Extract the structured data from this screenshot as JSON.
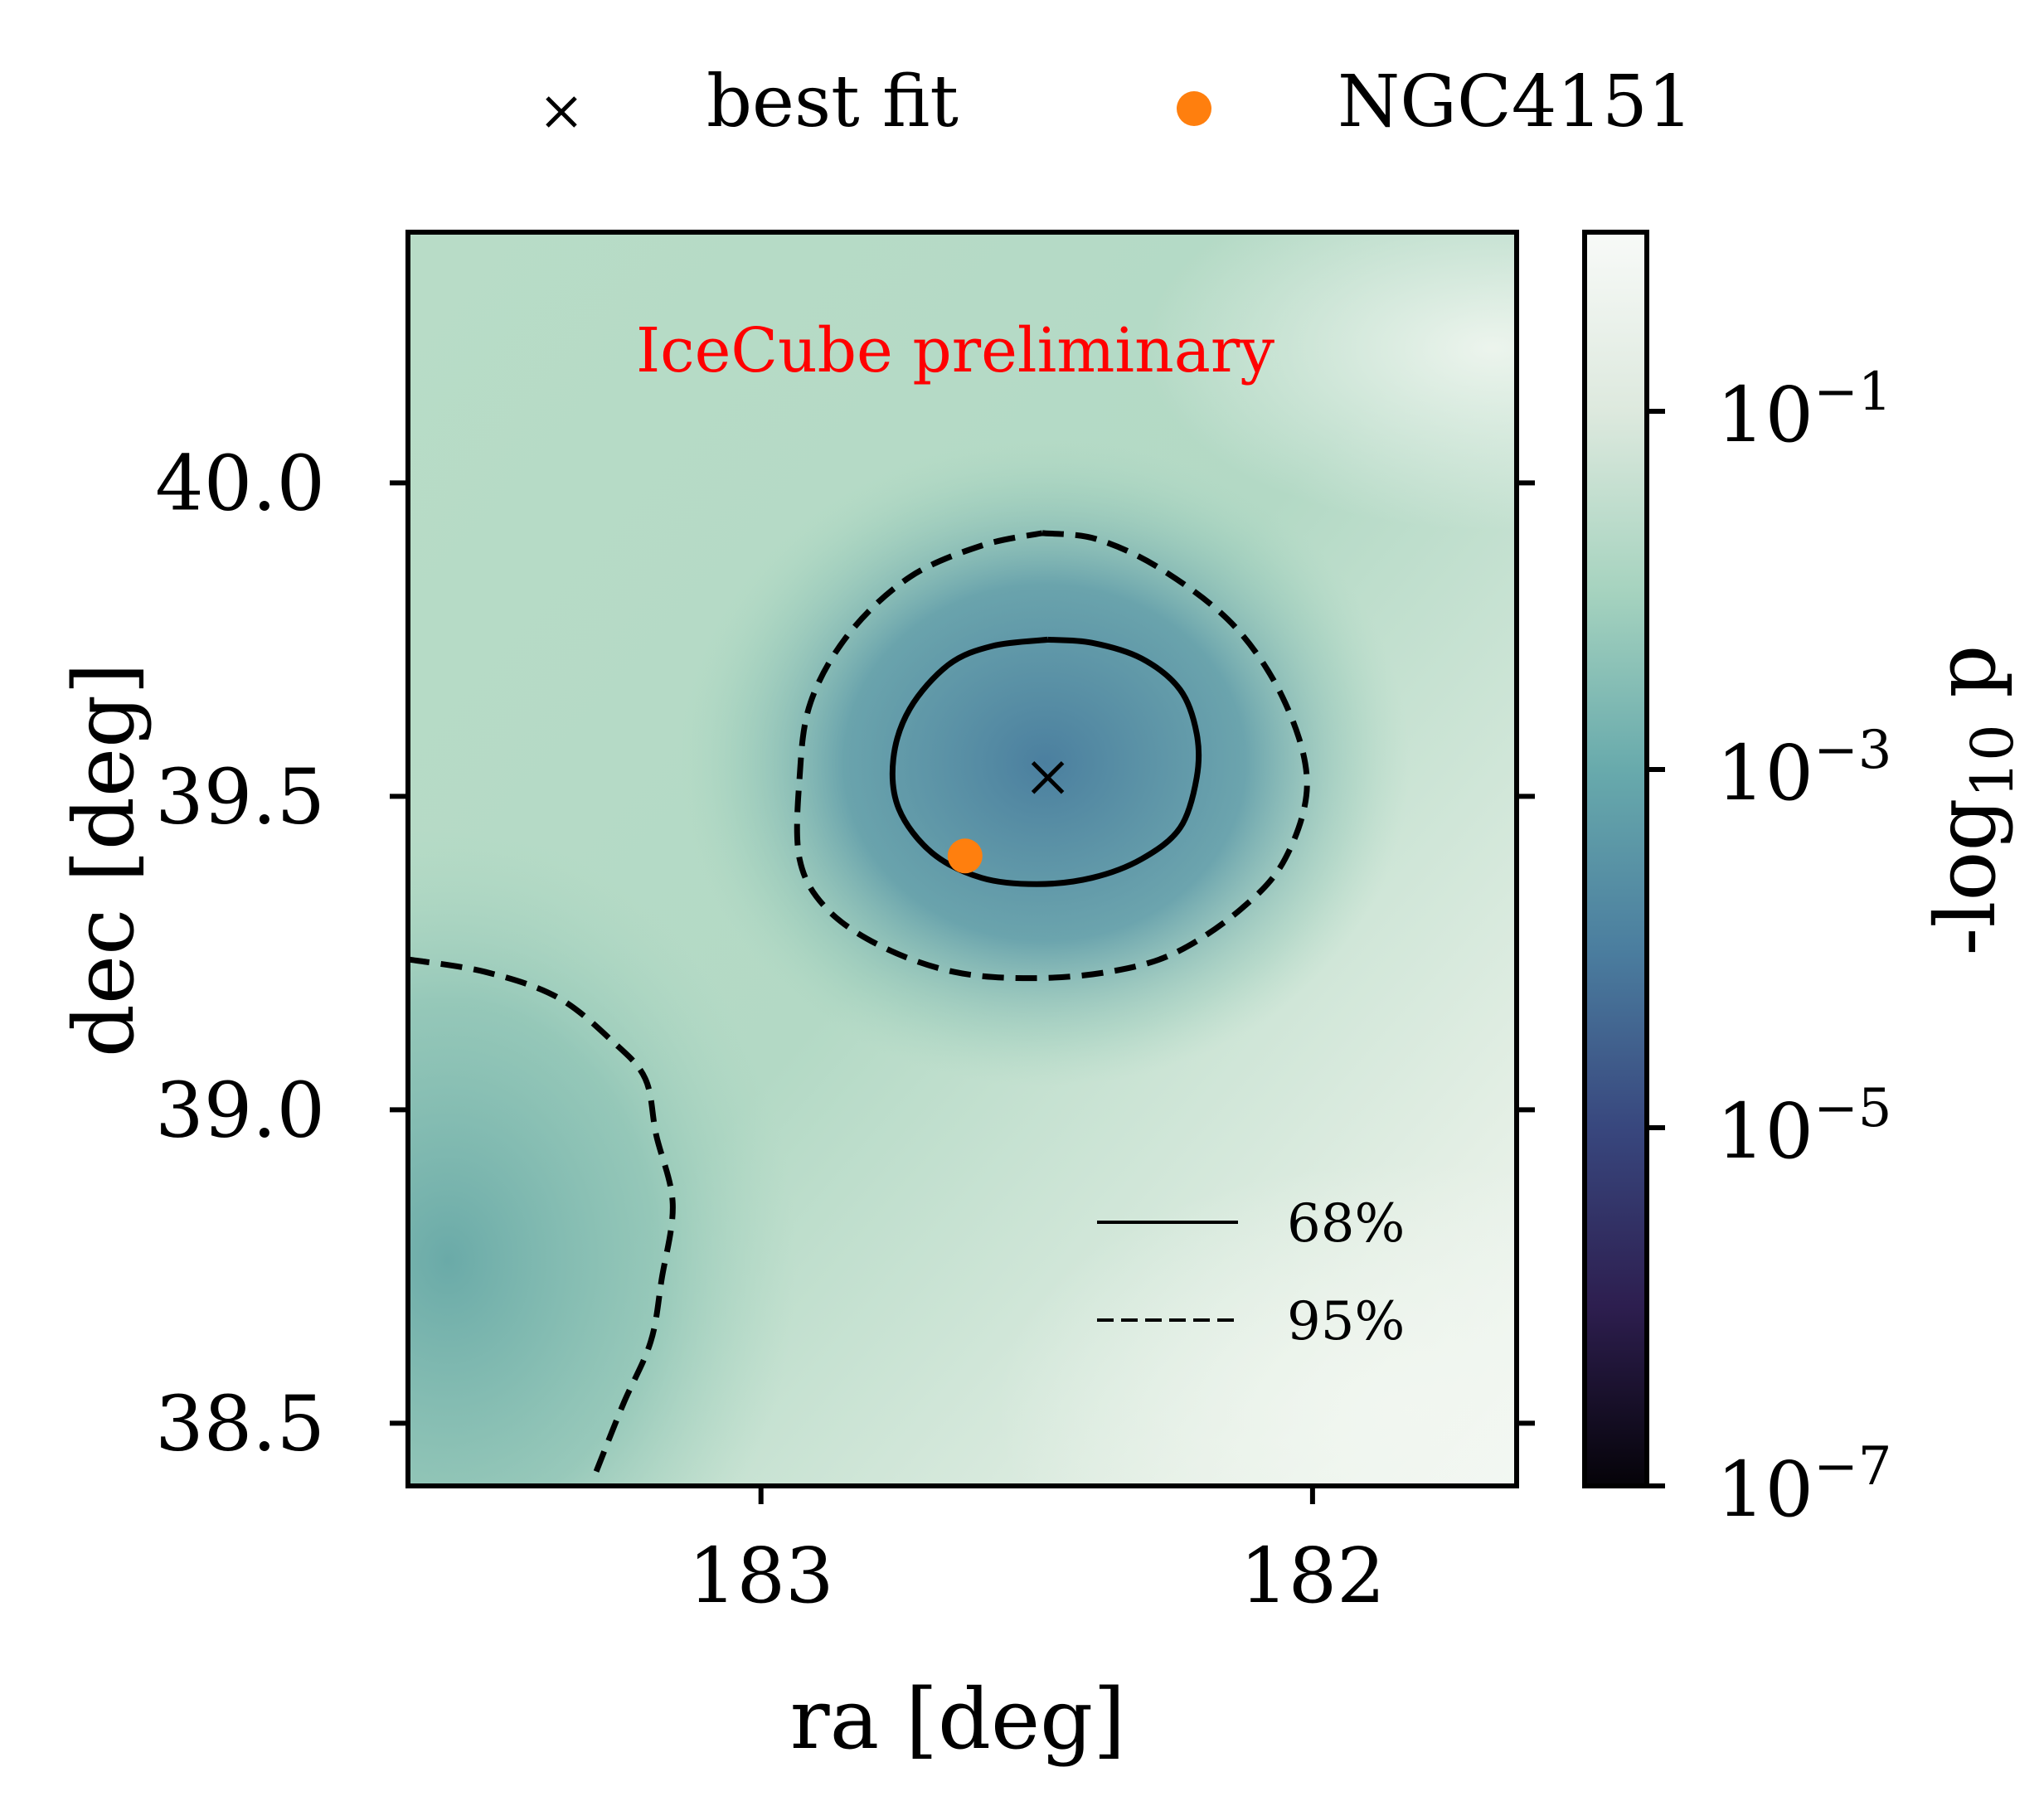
{
  "chart_data": {
    "type": "heatmap",
    "xlabel": "ra [deg]",
    "ylabel": "dec [deg]",
    "xlim": [
      183.64,
      181.63
    ],
    "ylim": [
      38.4,
      40.4
    ],
    "x_ticks": [
      183,
      182
    ],
    "x_tick_labels": [
      "183",
      "182"
    ],
    "y_ticks": [
      38.5,
      39.0,
      39.5,
      40.0
    ],
    "y_tick_labels": [
      "38.5",
      "39.0",
      "39.5",
      "40.0"
    ],
    "annotation": {
      "text": "IceCube preliminary",
      "color": "#ff0000"
    },
    "colorbar": {
      "label": "-log10 p",
      "label_main": "-log",
      "label_sub": "10",
      "label_tail": " p",
      "scale": "log",
      "range": [
        1e-07,
        1
      ],
      "ticks": [
        {
          "value": 0.1,
          "base": "10",
          "exp": "−1"
        },
        {
          "value": 0.001,
          "base": "10",
          "exp": "−3"
        },
        {
          "value": 1e-05,
          "base": "10",
          "exp": "−5"
        },
        {
          "value": 1e-07,
          "base": "10",
          "exp": "−7"
        }
      ],
      "colors": [
        "#050308",
        "#2d1e4f",
        "#38477e",
        "#4b7e9f",
        "#68aaac",
        "#a6d3bf",
        "#dde9de",
        "#f8faf8"
      ]
    },
    "top_legend": [
      {
        "label": "best fit",
        "marker": "x",
        "color": "#000000"
      },
      {
        "label": "NGC4151",
        "marker": "circle",
        "color": "#ff7f0e"
      }
    ],
    "contour_legend": [
      {
        "label": "68%",
        "style": "solid"
      },
      {
        "label": "95%",
        "style": "dashed"
      }
    ],
    "best_fit": {
      "ra": 182.48,
      "dec": 39.53
    },
    "ngc4151": {
      "ra": 182.63,
      "dec": 39.405
    },
    "contour_68": [
      [
        182.48,
        39.75
      ],
      [
        182.4,
        39.745
      ],
      [
        182.31,
        39.72
      ],
      [
        182.24,
        39.67
      ],
      [
        182.21,
        39.6
      ],
      [
        182.21,
        39.53
      ],
      [
        182.24,
        39.45
      ],
      [
        182.31,
        39.4
      ],
      [
        182.4,
        39.37
      ],
      [
        182.5,
        39.36
      ],
      [
        182.6,
        39.37
      ],
      [
        182.69,
        39.41
      ],
      [
        182.75,
        39.48
      ],
      [
        182.76,
        39.56
      ],
      [
        182.73,
        39.64
      ],
      [
        182.66,
        39.71
      ],
      [
        182.58,
        39.74
      ],
      [
        182.48,
        39.75
      ]
    ],
    "contour_95": [
      [
        182.49,
        39.92
      ],
      [
        182.39,
        39.91
      ],
      [
        182.27,
        39.86
      ],
      [
        182.14,
        39.77
      ],
      [
        182.05,
        39.65
      ],
      [
        182.01,
        39.52
      ],
      [
        182.05,
        39.4
      ],
      [
        182.13,
        39.32
      ],
      [
        182.25,
        39.25
      ],
      [
        182.37,
        39.22
      ],
      [
        182.51,
        39.21
      ],
      [
        182.65,
        39.22
      ],
      [
        182.78,
        39.26
      ],
      [
        182.88,
        39.32
      ],
      [
        182.93,
        39.4
      ],
      [
        182.93,
        39.53
      ],
      [
        182.91,
        39.65
      ],
      [
        182.84,
        39.76
      ],
      [
        182.73,
        39.85
      ],
      [
        182.6,
        39.9
      ],
      [
        182.49,
        39.92
      ]
    ],
    "contour_95_lower_left": [
      [
        183.64,
        39.24
      ],
      [
        183.5,
        39.22
      ],
      [
        183.37,
        39.18
      ],
      [
        183.27,
        39.11
      ],
      [
        183.21,
        39.05
      ],
      [
        183.19,
        38.96
      ],
      [
        183.16,
        38.85
      ],
      [
        183.18,
        38.73
      ],
      [
        183.2,
        38.63
      ],
      [
        183.25,
        38.53
      ],
      [
        183.3,
        38.42
      ]
    ]
  }
}
